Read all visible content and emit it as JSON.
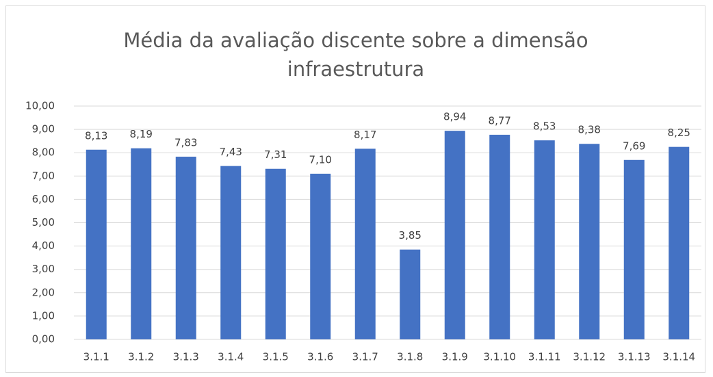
{
  "chart_data": {
    "type": "bar",
    "title": "Média da avaliação discente sobre a dimensão infraestrutura",
    "categories": [
      "3.1.1",
      "3.1.2",
      "3.1.3",
      "3.1.4",
      "3.1.5",
      "3.1.6",
      "3.1.7",
      "3.1.8",
      "3.1.9",
      "3.1.10",
      "3.1.11",
      "3.1.12",
      "3.1.13",
      "3.1.14"
    ],
    "values": [
      8.13,
      8.19,
      7.83,
      7.43,
      7.31,
      7.1,
      8.17,
      3.85,
      8.94,
      8.77,
      8.53,
      8.38,
      7.69,
      8.25
    ],
    "value_labels": [
      "8,13",
      "8,19",
      "7,83",
      "7,43",
      "7,31",
      "7,10",
      "8,17",
      "3,85",
      "8,94",
      "8,77",
      "8,53",
      "8,38",
      "7,69",
      "8,25"
    ],
    "color": "#4472c4",
    "ylim": [
      0,
      10
    ],
    "yticks": [
      {
        "value": 0,
        "label": "0,00"
      },
      {
        "value": 1,
        "label": "1,00"
      },
      {
        "value": 2,
        "label": "2,00"
      },
      {
        "value": 3,
        "label": "3,00"
      },
      {
        "value": 4,
        "label": "4,00"
      },
      {
        "value": 5,
        "label": "5,00"
      },
      {
        "value": 6,
        "label": "6,00"
      },
      {
        "value": 7,
        "label": "7,00"
      },
      {
        "value": 8,
        "label": "8,00"
      },
      {
        "value": 9,
        "label": "9,00"
      },
      {
        "value": 10,
        "label": "10,00"
      }
    ],
    "grid": true
  }
}
